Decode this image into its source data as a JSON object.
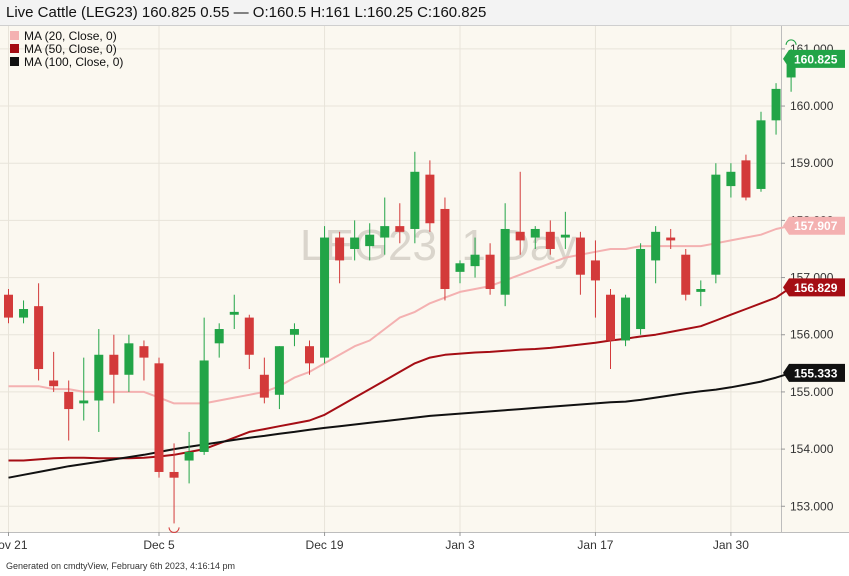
{
  "header": {
    "title": "Live Cattle (LEG23) 160.825 0.55 — O:160.5 H:161 L:160.25 C:160.825"
  },
  "footer": {
    "text": "Generated on cmdtyView, February 6th 2023, 4:16:14 pm"
  },
  "watermark": "LEG23, 1 Day",
  "colors": {
    "up": "#22a447",
    "down": "#d33a3a",
    "ma20": "#f4b1b1",
    "ma50": "#a50d14",
    "ma100": "#111111",
    "background": "#fbf8f0",
    "grid": "#e8e4da"
  },
  "chart_data": {
    "type": "candlestick",
    "y_axis": {
      "side": "right",
      "range": [
        152.55,
        161.4
      ],
      "ticks": [
        "153.000",
        "154.000",
        "155.000",
        "156.000",
        "157.000",
        "158.000",
        "159.000",
        "160.000",
        "161.000"
      ]
    },
    "x_axis": {
      "labels": [
        {
          "index": 0,
          "text": "Nov 21"
        },
        {
          "index": 10,
          "text": "Dec 5"
        },
        {
          "index": 21,
          "text": "Dec 19"
        },
        {
          "index": 30,
          "text": "Jan 3"
        },
        {
          "index": 39,
          "text": "Jan 17"
        },
        {
          "index": 48,
          "text": "Jan 30"
        }
      ]
    },
    "legend": {
      "placement": "top-left",
      "items": [
        {
          "label": "MA (20, Close, 0)",
          "color": "#f4b1b1"
        },
        {
          "label": "MA (50, Close, 0)",
          "color": "#a50d14"
        },
        {
          "label": "MA (100, Close, 0)",
          "color": "#111111"
        }
      ]
    },
    "last_values": [
      {
        "value": 160.825,
        "label": "160.825",
        "color": "#22a447",
        "text_color": "#ffffff"
      },
      {
        "value": 157.907,
        "label": "157.907",
        "color": "#f4b1b1",
        "text_color": "#ffffff"
      },
      {
        "value": 156.829,
        "label": "156.829",
        "color": "#a50d14",
        "text_color": "#ffffff"
      },
      {
        "value": 155.333,
        "label": "155.333",
        "color": "#111111",
        "text_color": "#ffffff"
      }
    ],
    "candles": [
      {
        "o": 156.7,
        "h": 156.8,
        "l": 156.2,
        "c": 156.3
      },
      {
        "o": 156.3,
        "h": 156.6,
        "l": 156.2,
        "c": 156.45
      },
      {
        "o": 156.5,
        "h": 156.9,
        "l": 155.2,
        "c": 155.4
      },
      {
        "o": 155.2,
        "h": 155.7,
        "l": 155.0,
        "c": 155.1
      },
      {
        "o": 155.0,
        "h": 155.2,
        "l": 154.15,
        "c": 154.7
      },
      {
        "o": 154.8,
        "h": 155.6,
        "l": 154.5,
        "c": 154.85
      },
      {
        "o": 154.85,
        "h": 156.1,
        "l": 154.3,
        "c": 155.65
      },
      {
        "o": 155.65,
        "h": 156.0,
        "l": 154.8,
        "c": 155.3
      },
      {
        "o": 155.3,
        "h": 156.0,
        "l": 155.0,
        "c": 155.85
      },
      {
        "o": 155.8,
        "h": 155.9,
        "l": 155.2,
        "c": 155.6
      },
      {
        "o": 155.5,
        "h": 155.6,
        "l": 153.5,
        "c": 153.6
      },
      {
        "o": 153.6,
        "h": 154.1,
        "l": 152.7,
        "c": 153.5
      },
      {
        "o": 153.8,
        "h": 154.3,
        "l": 153.4,
        "c": 153.95
      },
      {
        "o": 153.95,
        "h": 156.3,
        "l": 153.9,
        "c": 155.55
      },
      {
        "o": 155.85,
        "h": 156.2,
        "l": 155.6,
        "c": 156.1
      },
      {
        "o": 156.35,
        "h": 156.7,
        "l": 156.1,
        "c": 156.4
      },
      {
        "o": 156.3,
        "h": 156.35,
        "l": 155.4,
        "c": 155.65
      },
      {
        "o": 155.3,
        "h": 155.6,
        "l": 154.8,
        "c": 154.9
      },
      {
        "o": 154.95,
        "h": 155.8,
        "l": 154.7,
        "c": 155.8
      },
      {
        "o": 156.0,
        "h": 156.2,
        "l": 155.8,
        "c": 156.1
      },
      {
        "o": 155.8,
        "h": 155.9,
        "l": 155.3,
        "c": 155.5
      },
      {
        "o": 155.6,
        "h": 157.9,
        "l": 155.5,
        "c": 157.7
      },
      {
        "o": 157.7,
        "h": 157.8,
        "l": 156.9,
        "c": 157.3
      },
      {
        "o": 157.5,
        "h": 158.0,
        "l": 157.3,
        "c": 157.7
      },
      {
        "o": 157.55,
        "h": 157.95,
        "l": 157.3,
        "c": 157.75
      },
      {
        "o": 157.7,
        "h": 158.4,
        "l": 157.4,
        "c": 157.9
      },
      {
        "o": 157.9,
        "h": 158.3,
        "l": 157.6,
        "c": 157.8
      },
      {
        "o": 157.85,
        "h": 159.2,
        "l": 157.6,
        "c": 158.85
      },
      {
        "o": 158.8,
        "h": 159.05,
        "l": 157.8,
        "c": 157.95
      },
      {
        "o": 158.2,
        "h": 158.4,
        "l": 156.6,
        "c": 156.8
      },
      {
        "o": 157.1,
        "h": 157.3,
        "l": 156.9,
        "c": 157.25
      },
      {
        "o": 157.2,
        "h": 157.7,
        "l": 157.0,
        "c": 157.4
      },
      {
        "o": 157.4,
        "h": 157.6,
        "l": 156.7,
        "c": 156.8
      },
      {
        "o": 156.7,
        "h": 158.3,
        "l": 156.5,
        "c": 157.85
      },
      {
        "o": 157.8,
        "h": 158.85,
        "l": 157.4,
        "c": 157.65
      },
      {
        "o": 157.7,
        "h": 157.9,
        "l": 157.5,
        "c": 157.85
      },
      {
        "o": 157.8,
        "h": 158.0,
        "l": 157.4,
        "c": 157.5
      },
      {
        "o": 157.7,
        "h": 158.15,
        "l": 157.5,
        "c": 157.75
      },
      {
        "o": 157.7,
        "h": 157.8,
        "l": 156.7,
        "c": 157.05
      },
      {
        "o": 157.3,
        "h": 157.65,
        "l": 156.3,
        "c": 156.95
      },
      {
        "o": 156.7,
        "h": 156.8,
        "l": 155.4,
        "c": 155.9
      },
      {
        "o": 155.9,
        "h": 156.7,
        "l": 155.8,
        "c": 156.65
      },
      {
        "o": 156.1,
        "h": 157.6,
        "l": 156.0,
        "c": 157.5
      },
      {
        "o": 157.3,
        "h": 157.9,
        "l": 156.9,
        "c": 157.8
      },
      {
        "o": 157.7,
        "h": 157.85,
        "l": 157.5,
        "c": 157.65
      },
      {
        "o": 157.4,
        "h": 157.5,
        "l": 156.6,
        "c": 156.7
      },
      {
        "o": 156.75,
        "h": 156.95,
        "l": 156.5,
        "c": 156.8
      },
      {
        "o": 157.05,
        "h": 159.0,
        "l": 156.9,
        "c": 158.8
      },
      {
        "o": 158.6,
        "h": 159.0,
        "l": 158.4,
        "c": 158.85
      },
      {
        "o": 159.05,
        "h": 159.15,
        "l": 158.35,
        "c": 158.4
      },
      {
        "o": 158.55,
        "h": 159.9,
        "l": 158.5,
        "c": 159.75
      },
      {
        "o": 159.75,
        "h": 160.4,
        "l": 159.5,
        "c": 160.3
      },
      {
        "o": 160.5,
        "h": 161.0,
        "l": 160.25,
        "c": 160.825
      }
    ],
    "moving_averages": [
      {
        "name": "MA (20, Close, 0)",
        "color": "#f4b1b1",
        "start_index": 0,
        "values": [
          155.1,
          155.1,
          155.1,
          155.05,
          155.05,
          155.0,
          155.0,
          155.0,
          155.0,
          155.0,
          154.9,
          154.8,
          154.8,
          154.8,
          154.85,
          154.9,
          154.95,
          155.0,
          155.1,
          155.25,
          155.35,
          155.5,
          155.65,
          155.8,
          155.9,
          156.1,
          156.3,
          156.4,
          156.55,
          156.65,
          156.75,
          156.8,
          156.85,
          156.95,
          157.05,
          157.15,
          157.25,
          157.35,
          157.4,
          157.45,
          157.5,
          157.5,
          157.55,
          157.55,
          157.55,
          157.55,
          157.55,
          157.6,
          157.65,
          157.7,
          157.75,
          157.85,
          157.907
        ]
      },
      {
        "name": "MA (50, Close, 0)",
        "color": "#a50d14",
        "start_index": 0,
        "values": [
          153.8,
          153.8,
          153.82,
          153.84,
          153.85,
          153.85,
          153.84,
          153.84,
          153.84,
          153.85,
          153.87,
          153.9,
          153.95,
          154.0,
          154.1,
          154.2,
          154.3,
          154.35,
          154.4,
          154.45,
          154.5,
          154.6,
          154.75,
          154.9,
          155.05,
          155.2,
          155.35,
          155.5,
          155.6,
          155.65,
          155.67,
          155.69,
          155.7,
          155.72,
          155.74,
          155.75,
          155.77,
          155.8,
          155.83,
          155.86,
          155.9,
          155.93,
          155.97,
          156.0,
          156.05,
          156.1,
          156.15,
          156.25,
          156.35,
          156.45,
          156.55,
          156.65,
          156.829
        ]
      },
      {
        "name": "MA (100, Close, 0)",
        "color": "#111111",
        "start_index": 0,
        "values": [
          153.5,
          153.55,
          153.6,
          153.65,
          153.7,
          153.74,
          153.78,
          153.82,
          153.86,
          153.9,
          153.95,
          154.0,
          154.04,
          154.08,
          154.12,
          154.16,
          154.2,
          154.23,
          154.27,
          154.3,
          154.34,
          154.37,
          154.4,
          154.43,
          154.46,
          154.49,
          154.52,
          154.55,
          154.58,
          154.6,
          154.62,
          154.64,
          154.66,
          154.68,
          154.7,
          154.72,
          154.74,
          154.76,
          154.78,
          154.8,
          154.82,
          154.83,
          154.86,
          154.9,
          154.94,
          154.98,
          155.01,
          155.04,
          155.08,
          155.13,
          155.18,
          155.25,
          155.333
        ]
      }
    ],
    "markers": [
      {
        "index": 11,
        "value": 152.7,
        "direction": "low"
      },
      {
        "index": 52,
        "value": 161.0,
        "direction": "high"
      }
    ]
  }
}
